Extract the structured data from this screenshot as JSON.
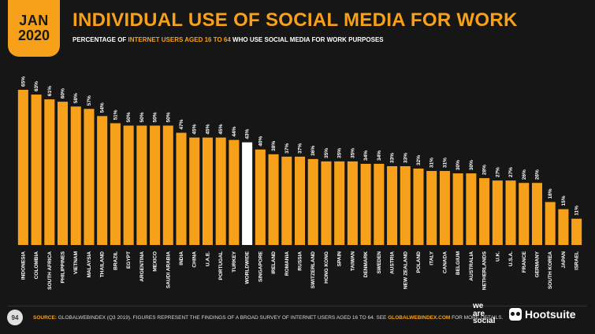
{
  "header": {
    "month": "JAN",
    "year": "2020",
    "title": "INDIVIDUAL USE OF SOCIAL MEDIA FOR WORK",
    "subtitle_pre": "PERCENTAGE OF",
    "subtitle_hl": "INTERNET USERS AGED 16 TO 64",
    "subtitle_post": "WHO USE SOCIAL MEDIA FOR WORK PURPOSES"
  },
  "footer": {
    "page_number": "94",
    "source_label": "SOURCE:",
    "source_text": "GLOBALWEBINDEX (Q3 2019). FIGURES REPRESENT THE FINDINGS OF A BROAD SURVEY OF INTERNET USERS AGED 16 TO 64. SEE",
    "source_site": "GLOBALWEBINDEX.COM",
    "source_tail": "FOR MORE DETAILS.",
    "logo_was_1": "we",
    "logo_was_2": "are",
    "logo_was_3": "social",
    "logo_hootsuite": "Hootsuite"
  },
  "colors": {
    "bar": "#f7a11a",
    "highlight_bar": "#ffffff",
    "background": "#161616"
  },
  "chart_data": {
    "type": "bar",
    "categories": [
      "INDONESIA",
      "COLOMBIA",
      "SOUTH AFRICA",
      "PHILIPPINES",
      "VIETNAM",
      "MALAYSIA",
      "THAILAND",
      "BRAZIL",
      "EGYPT",
      "ARGENTINA",
      "MEXICO",
      "SAUDI ARABIA",
      "INDIA",
      "CHINA",
      "U.A.E.",
      "PORTUGAL",
      "TURKEY",
      "WORLDWIDE",
      "SINGAPORE",
      "IRELAND",
      "ROMANIA",
      "RUSSIA",
      "SWITZERLAND",
      "HONG KONG",
      "SPAIN",
      "TAIWAN",
      "DENMARK",
      "SWEDEN",
      "AUSTRIA",
      "NEW ZEALAND",
      "POLAND",
      "ITALY",
      "CANADA",
      "BELGIUM",
      "AUSTRALIA",
      "NETHERLANDS",
      "U.K.",
      "U.S.A.",
      "FRANCE",
      "GERMANY",
      "SOUTH KOREA",
      "JAPAN",
      "ISRAEL"
    ],
    "values": [
      65,
      63,
      61,
      60,
      58,
      57,
      54,
      51,
      50,
      50,
      50,
      50,
      47,
      45,
      45,
      45,
      44,
      43,
      40,
      38,
      37,
      37,
      36,
      35,
      35,
      35,
      34,
      34,
      33,
      33,
      32,
      31,
      31,
      30,
      30,
      28,
      27,
      27,
      26,
      26,
      18,
      15,
      11
    ],
    "value_labels": [
      "65%",
      "63%",
      "61%",
      "60%",
      "58%",
      "57%",
      "54%",
      "51%",
      "50%",
      "50%",
      "50%",
      "50%",
      "47%",
      "45%",
      "45%",
      "45%",
      "44%",
      "43%",
      "40%",
      "38%",
      "37%",
      "37%",
      "36%",
      "35%",
      "35%",
      "35%",
      "34%",
      "34%",
      "33%",
      "33%",
      "32%",
      "31%",
      "31%",
      "30%",
      "30%",
      "28%",
      "27%",
      "27%",
      "26%",
      "26%",
      "18%",
      "15%",
      "11%"
    ],
    "highlight_category": "WORLDWIDE",
    "ylim": [
      0,
      65
    ]
  }
}
